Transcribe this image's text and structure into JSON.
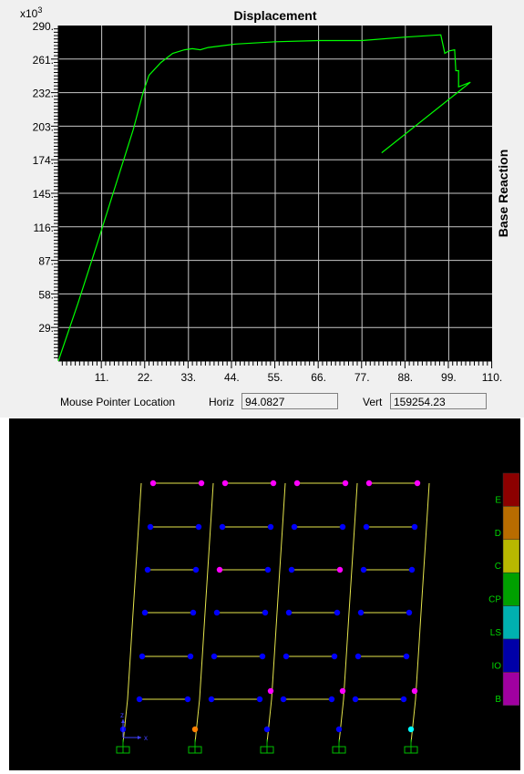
{
  "plot": {
    "title": "Displacement",
    "ylabel": "Base Reaction",
    "y_multiplier": "x10",
    "y_multiplier_exp": "3"
  },
  "status": {
    "mouse_label": "Mouse Pointer Location",
    "horiz_label": "Horiz",
    "horiz_value": "94.0827",
    "vert_label": "Vert",
    "vert_value": "159254.23"
  },
  "chart_data": {
    "type": "line",
    "title": "Displacement",
    "xlabel": "",
    "ylabel": "Base Reaction",
    "x_ticks": [
      "11.",
      "22.",
      "33.",
      "44.",
      "55.",
      "66.",
      "77.",
      "88.",
      "99.",
      "110."
    ],
    "y_ticks": [
      "29.",
      "58.",
      "87.",
      "116.",
      "145.",
      "174.",
      "203.",
      "232.",
      "261.",
      "290."
    ],
    "y_unit_multiplier": 1000,
    "xlim": [
      0,
      110
    ],
    "ylim": [
      0,
      290
    ],
    "grid": true,
    "series": [
      {
        "color": "#00ff00",
        "points": [
          [
            0,
            0
          ],
          [
            5,
            50
          ],
          [
            10,
            103
          ],
          [
            15,
            157
          ],
          [
            19,
            200
          ],
          [
            21.5,
            232
          ],
          [
            23,
            247
          ],
          [
            26,
            258
          ],
          [
            29,
            266
          ],
          [
            32,
            269
          ],
          [
            34,
            270
          ],
          [
            36,
            269
          ],
          [
            38,
            271
          ],
          [
            45,
            274
          ],
          [
            55,
            276
          ],
          [
            66,
            277
          ],
          [
            77,
            277
          ],
          [
            88,
            280
          ],
          [
            97,
            282
          ],
          [
            98,
            266
          ],
          [
            99,
            268
          ],
          [
            100.5,
            269
          ],
          [
            100.8,
            251
          ],
          [
            101.5,
            251
          ],
          [
            101.5,
            237
          ],
          [
            104.5,
            241
          ],
          [
            82,
            180
          ]
        ]
      }
    ]
  },
  "frame_view": {
    "axis_x_label": "x",
    "axis_z_label": "z",
    "scale_labels": [
      "E",
      "D",
      "C",
      "CP",
      "LS",
      "IO",
      "B"
    ],
    "scale_colors": [
      "#8c0000",
      "#b86c00",
      "#b8b800",
      "#00a000",
      "#00b0b0",
      "#0000a8",
      "#a000a0"
    ],
    "member_color": "#e6e64c",
    "hinge_colors": {
      "B": "#ff00ff",
      "IO": "#0000ff",
      "LS": "#00ffff",
      "CP": "#00ff00",
      "C": "#ffff00",
      "D": "#ff8000",
      "E": "#ff0000"
    },
    "floor_hinges": [
      [
        "B",
        "B",
        "B",
        "B",
        "B",
        "B",
        "B",
        "B"
      ],
      [
        "IO",
        "IO",
        "IO",
        "IO",
        "IO",
        "IO",
        "IO",
        "IO"
      ],
      [
        "IO",
        "IO",
        "B",
        "IO",
        "IO",
        "B",
        "IO",
        "IO"
      ],
      [
        "IO",
        "IO",
        "IO",
        "IO",
        "IO",
        "IO",
        "IO",
        "IO"
      ],
      [
        "IO",
        "IO",
        "IO",
        "IO",
        "IO",
        "IO",
        "IO",
        "IO"
      ],
      [
        "IO",
        "IO",
        "IO",
        "IO",
        "IO",
        "IO",
        "IO",
        "IO"
      ]
    ],
    "extra_hinges": [
      "B",
      "B",
      "B"
    ],
    "base_hinges": [
      "IO",
      "D",
      "IO",
      "IO",
      "LS"
    ]
  }
}
